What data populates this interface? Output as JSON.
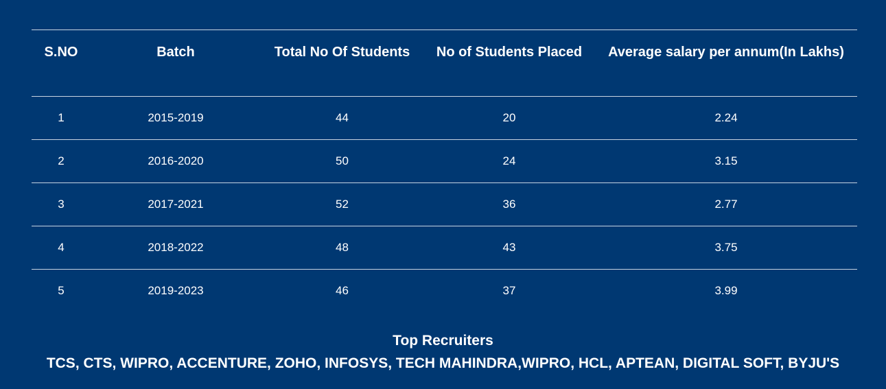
{
  "table": {
    "headers": [
      "S.NO",
      "Batch",
      "Total No Of Students",
      "No of Students Placed",
      "Average salary per annum(In Lakhs)"
    ],
    "rows": [
      [
        "1",
        "2015-2019",
        "44",
        "20",
        "2.24"
      ],
      [
        "2",
        "2016-2020",
        "50",
        "24",
        "3.15"
      ],
      [
        "3",
        "2017-2021",
        "52",
        "36",
        "2.77"
      ],
      [
        "4",
        "2018-2022",
        "48",
        "43",
        "3.75"
      ],
      [
        "5",
        "2019-2023",
        "46",
        "37",
        "3.99"
      ]
    ]
  },
  "recruiters": {
    "title": "Top Recruiters",
    "list": "TCS, CTS, WIPRO, ACCENTURE, ZOHO, INFOSYS, TECH MAHINDRA,WIPRO, HCL, APTEAN, DIGITAL SOFT, BYJU'S"
  },
  "colors": {
    "background": "#003872",
    "text": "#ffffff",
    "divider": "#c9d4e2"
  }
}
